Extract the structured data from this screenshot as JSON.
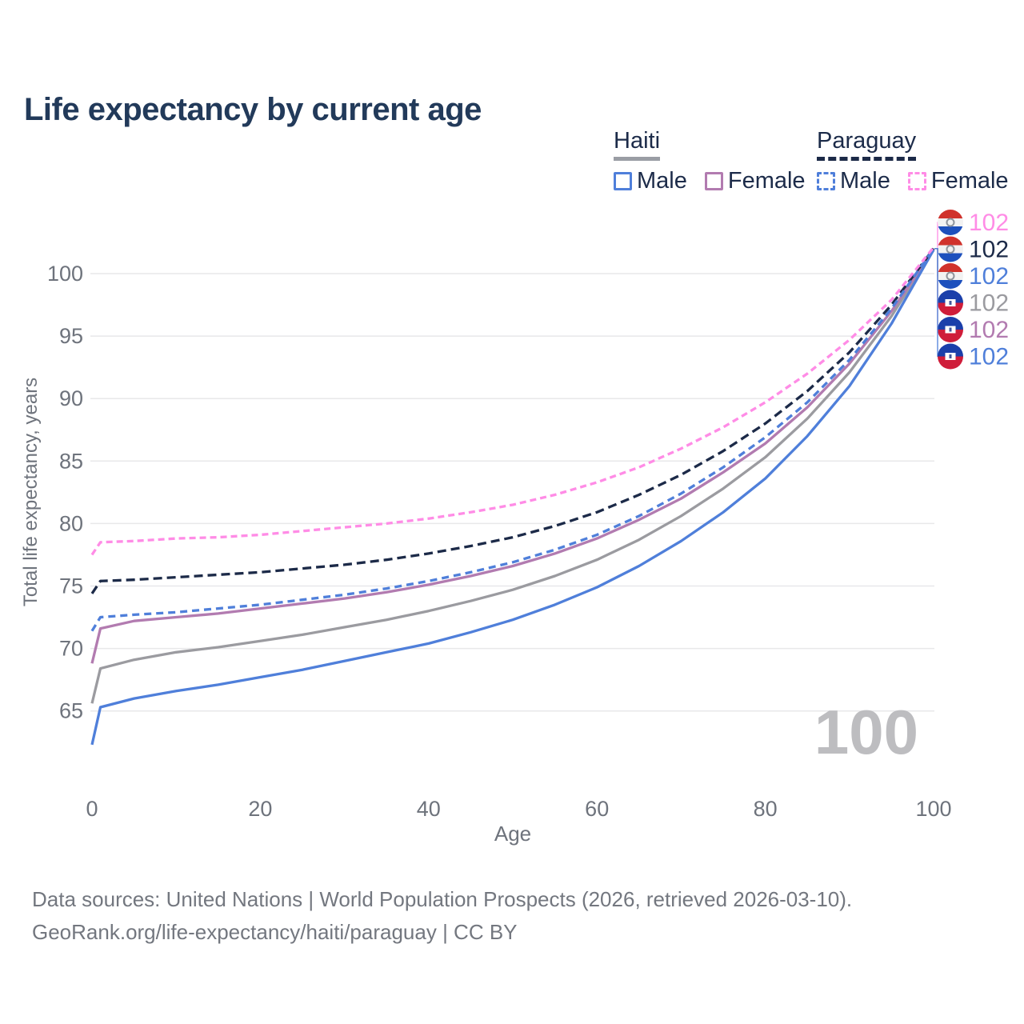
{
  "title": "Life expectancy by current age",
  "watermark_age": "100",
  "palette": {
    "blue": "#4f7fda",
    "purple": "#b27bb0",
    "gray": "#9b9ba0",
    "navy": "#1c2a48",
    "pink": "#ff8ce6",
    "grid": "#e8e8ea",
    "tick_text": "#6e737c",
    "legend_text": "#1c2b49",
    "title_text": "#223a5a",
    "footer_text": "#73777f",
    "watermark": "#bdbdc0",
    "haiti_flag_blue": "#1b3faa",
    "haiti_flag_red": "#cf1d3a",
    "paraguay_flag_red": "#d0322c",
    "paraguay_flag_white": "#f2f2f2",
    "paraguay_flag_blue": "#1d50bd"
  },
  "legend": {
    "groups": [
      {
        "country": "Haiti",
        "line_style": "solid",
        "underline_color": "#9a9da4",
        "items": [
          {
            "label": "Male",
            "color": "#4f7fda"
          },
          {
            "label": "Female",
            "color": "#b27bb0"
          }
        ]
      },
      {
        "country": "Paraguay",
        "line_style": "dashed",
        "underline_color": "#1c2a48",
        "items": [
          {
            "label": "Male",
            "color": "#4f7fda"
          },
          {
            "label": "Female",
            "color": "#ff8ce6"
          }
        ]
      }
    ]
  },
  "axes": {
    "y_label": "Total life expectancy, years",
    "x_label": "Age",
    "y_ticks": [
      65,
      70,
      75,
      80,
      85,
      90,
      95,
      100
    ],
    "x_ticks": [
      0,
      20,
      40,
      60,
      80,
      100
    ]
  },
  "end_labels": [
    {
      "series": "Paraguay Female",
      "flag": "paraguay",
      "value": "102",
      "color": "#ff8ce6"
    },
    {
      "series": "Paraguay",
      "flag": "paraguay",
      "value": "102",
      "color": "#1c2a48"
    },
    {
      "series": "Paraguay Male",
      "flag": "paraguay",
      "value": "102",
      "color": "#4f7fda"
    },
    {
      "series": "Haiti",
      "flag": "haiti",
      "value": "102",
      "color": "#9b9ba0"
    },
    {
      "series": "Haiti Female",
      "flag": "haiti",
      "value": "102",
      "color": "#b27bb0"
    },
    {
      "series": "Haiti Male",
      "flag": "haiti",
      "value": "102",
      "color": "#4f7fda"
    }
  ],
  "footer": {
    "line1": "Data sources: United Nations | World Population Prospects (2026, retrieved 2026-03-10).",
    "line2": "GeoRank.org/life-expectancy/haiti/paraguay | CC BY"
  },
  "chart_data": {
    "type": "line",
    "title": "Life expectancy by current age",
    "xlabel": "Age",
    "ylabel": "Total life expectancy, years",
    "xlim": [
      0,
      100
    ],
    "ylim": [
      61,
      103
    ],
    "grid": "horizontal",
    "legend_position": "top-right",
    "x": [
      0,
      1,
      5,
      10,
      15,
      20,
      25,
      30,
      35,
      40,
      45,
      50,
      55,
      60,
      65,
      70,
      75,
      80,
      85,
      90,
      95,
      100
    ],
    "series": [
      {
        "name": "Haiti",
        "country": "Haiti",
        "sex": "both",
        "color": "#9b9ba0",
        "dash": "solid",
        "values": [
          65.6,
          68.4,
          69.1,
          69.7,
          70.1,
          70.6,
          71.1,
          71.7,
          72.3,
          73.0,
          73.8,
          74.7,
          75.8,
          77.1,
          78.7,
          80.6,
          82.8,
          85.3,
          88.4,
          92.1,
          96.6,
          101.9
        ]
      },
      {
        "name": "Haiti Female",
        "country": "Haiti",
        "sex": "female",
        "color": "#b27bb0",
        "dash": "solid",
        "values": [
          68.8,
          71.6,
          72.2,
          72.5,
          72.8,
          73.2,
          73.6,
          74.0,
          74.5,
          75.1,
          75.8,
          76.6,
          77.6,
          78.8,
          80.3,
          82.0,
          84.1,
          86.4,
          89.3,
          92.8,
          97.0,
          101.9
        ]
      },
      {
        "name": "Haiti Male",
        "country": "Haiti",
        "sex": "male",
        "color": "#4f7fda",
        "dash": "solid",
        "values": [
          62.3,
          65.3,
          66.0,
          66.6,
          67.1,
          67.7,
          68.3,
          69.0,
          69.7,
          70.4,
          71.3,
          72.3,
          73.5,
          74.9,
          76.6,
          78.6,
          80.9,
          83.6,
          87.0,
          91.0,
          96.0,
          101.9
        ]
      },
      {
        "name": "Paraguay",
        "country": "Paraguay",
        "sex": "both",
        "color": "#1c2a48",
        "dash": "dashed",
        "values": [
          74.4,
          75.4,
          75.5,
          75.7,
          75.9,
          76.1,
          76.4,
          76.7,
          77.1,
          77.6,
          78.2,
          78.9,
          79.8,
          80.9,
          82.3,
          83.9,
          85.8,
          88.0,
          90.6,
          93.7,
          97.5,
          102.0
        ]
      },
      {
        "name": "Paraguay Male",
        "country": "Paraguay",
        "sex": "male",
        "color": "#4f7fda",
        "dash": "dashed",
        "values": [
          71.4,
          72.5,
          72.7,
          72.9,
          73.2,
          73.5,
          73.9,
          74.3,
          74.8,
          75.4,
          76.1,
          76.9,
          77.9,
          79.1,
          80.6,
          82.4,
          84.5,
          86.9,
          89.7,
          93.1,
          97.2,
          102.0
        ]
      },
      {
        "name": "Paraguay Female",
        "country": "Paraguay",
        "sex": "female",
        "color": "#ff8ce6",
        "dash": "dashed",
        "values": [
          77.5,
          78.5,
          78.6,
          78.8,
          78.9,
          79.1,
          79.4,
          79.7,
          80.0,
          80.4,
          80.9,
          81.5,
          82.3,
          83.3,
          84.5,
          86.0,
          87.7,
          89.7,
          92.0,
          94.7,
          97.9,
          102.1
        ]
      }
    ]
  }
}
